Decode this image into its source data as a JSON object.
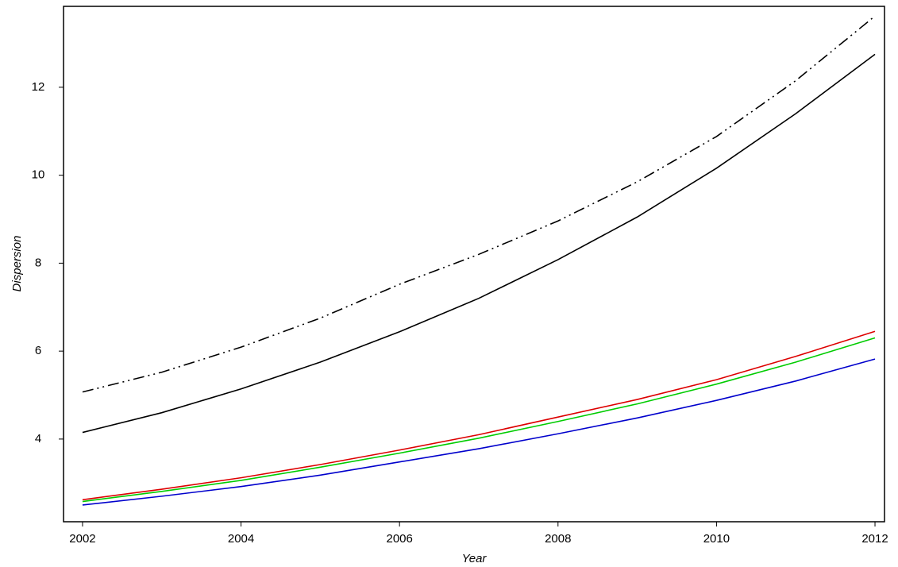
{
  "chart_data": {
    "type": "line",
    "x_label": "Year",
    "y_label": "Dispersion",
    "x": [
      2002,
      2003,
      2004,
      2005,
      2006,
      2007,
      2008,
      2009,
      2010,
      2011,
      2012
    ],
    "series": [
      {
        "color": "#000000",
        "line_style": "dashdotdot",
        "values": [
          5.07,
          5.52,
          6.09,
          6.75,
          7.52,
          8.2,
          8.96,
          9.85,
          10.88,
          12.15,
          13.62
        ]
      },
      {
        "color": "#000000",
        "line_style": "solid",
        "values": [
          4.15,
          4.6,
          5.14,
          5.75,
          6.44,
          7.2,
          8.08,
          9.05,
          10.16,
          11.4,
          12.75
        ]
      },
      {
        "color": "#dd0000",
        "line_style": "solid",
        "values": [
          2.62,
          2.86,
          3.12,
          3.42,
          3.75,
          4.1,
          4.5,
          4.9,
          5.35,
          5.88,
          6.45
        ]
      },
      {
        "color": "#00cc00",
        "line_style": "solid",
        "values": [
          2.58,
          2.81,
          3.06,
          3.36,
          3.68,
          4.02,
          4.4,
          4.8,
          5.25,
          5.75,
          6.3
        ]
      },
      {
        "color": "#0000cc",
        "line_style": "solid",
        "values": [
          2.5,
          2.7,
          2.92,
          3.18,
          3.48,
          3.78,
          4.12,
          4.48,
          4.88,
          5.32,
          5.82
        ]
      }
    ],
    "xlim": [
      2001.76,
      2012.12
    ],
    "xticks": [
      2002,
      2004,
      2006,
      2008,
      2010,
      2012
    ],
    "ylim": [
      2.12,
      13.84
    ],
    "yticks": [
      4,
      6,
      8,
      10,
      12
    ],
    "grid": false
  }
}
